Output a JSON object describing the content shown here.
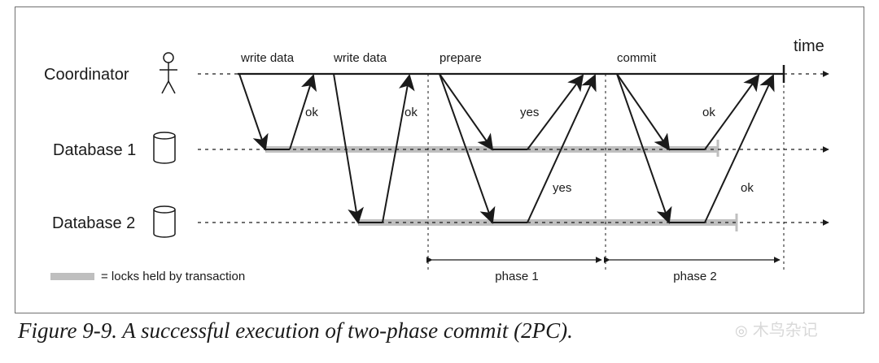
{
  "figure": {
    "time_label": "time",
    "participants": {
      "coordinator": "Coordinator",
      "db1": "Database 1",
      "db2": "Database 2"
    },
    "requests": {
      "write1": "write data",
      "write2": "write data",
      "prepare": "prepare",
      "commit": "commit"
    },
    "responses": {
      "ok_write1": "ok",
      "ok_write2": "ok",
      "yes_db1": "yes",
      "yes_db2": "yes",
      "ok_commit_db1": "ok",
      "ok_commit_db2": "ok"
    },
    "phases": {
      "phase1": "phase 1",
      "phase2": "phase 2"
    },
    "legend": {
      "text": "= locks held by transaction",
      "lock_color": "#bfbfbf"
    }
  },
  "caption": "Figure 9-9. A successful execution of two-phase commit (2PC).",
  "watermark": "木鸟杂记"
}
